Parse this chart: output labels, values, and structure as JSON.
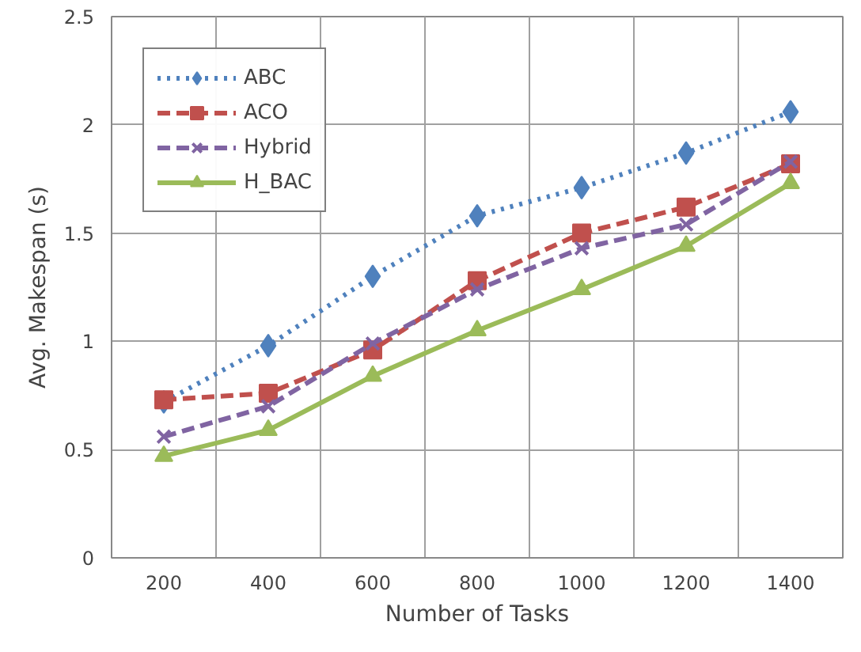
{
  "chart_data": {
    "type": "line",
    "xlabel": "Number of Tasks",
    "ylabel": "Avg. Makespan (s)",
    "categories": [
      "200",
      "400",
      "600",
      "800",
      "1000",
      "1200",
      "1400"
    ],
    "series": [
      {
        "name": "ABC",
        "color": "#4f81bd",
        "marker": "diamond",
        "line_style": "dotted",
        "values": [
          0.72,
          0.98,
          1.3,
          1.58,
          1.71,
          1.87,
          2.06
        ]
      },
      {
        "name": "ACO",
        "color": "#c0504d",
        "marker": "square",
        "line_style": "dashed",
        "values": [
          0.73,
          0.76,
          0.96,
          1.28,
          1.5,
          1.62,
          1.82
        ]
      },
      {
        "name": "Hybrid",
        "color": "#8064a2",
        "marker": "cross",
        "line_style": "dashed",
        "values": [
          0.56,
          0.7,
          0.99,
          1.24,
          1.43,
          1.54,
          1.83
        ]
      },
      {
        "name": "H_BAC",
        "color": "#9bbb59",
        "marker": "triangle",
        "line_style": "solid",
        "values": [
          0.47,
          0.59,
          0.84,
          1.05,
          1.24,
          1.44,
          1.73
        ]
      }
    ],
    "ylim": [
      0,
      2.5
    ],
    "yticks": [
      0,
      0.5,
      1,
      1.5,
      2,
      2.5
    ],
    "grid": true,
    "legend": "top left"
  }
}
